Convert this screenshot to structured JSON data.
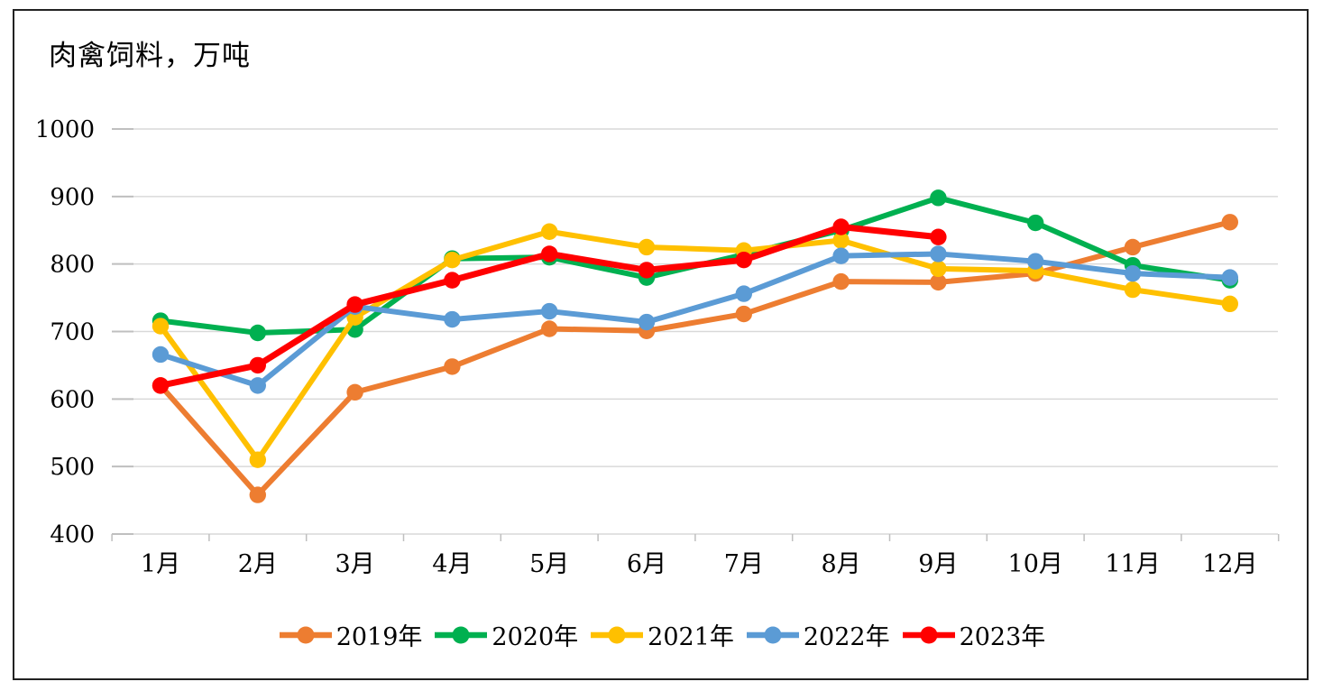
{
  "title": "肉禽饲料，万吨",
  "chart_data": {
    "type": "line",
    "title": "肉禽饲料，万吨",
    "unit": "万吨",
    "categories": [
      "1月",
      "2月",
      "3月",
      "4月",
      "5月",
      "6月",
      "7月",
      "8月",
      "9月",
      "10月",
      "11月",
      "12月"
    ],
    "series": [
      {
        "name": "2019年",
        "color": "#ED7D31",
        "values": [
          620,
          458,
          610,
          648,
          704,
          701,
          726,
          774,
          773,
          786,
          825,
          862
        ]
      },
      {
        "name": "2020年",
        "color": "#00B050",
        "values": [
          716,
          698,
          703,
          808,
          810,
          780,
          814,
          850,
          898,
          861,
          798,
          776
        ]
      },
      {
        "name": "2021年",
        "color": "#FFC000",
        "values": [
          708,
          510,
          721,
          806,
          848,
          825,
          820,
          835,
          793,
          790,
          762,
          741
        ]
      },
      {
        "name": "2022年",
        "color": "#5B9BD5",
        "values": [
          666,
          620,
          737,
          718,
          730,
          714,
          756,
          812,
          815,
          804,
          786,
          780
        ]
      },
      {
        "name": "2023年",
        "color": "#FF0000",
        "values": [
          620,
          650,
          740,
          776,
          815,
          791,
          806,
          855,
          840,
          null,
          null,
          null
        ]
      }
    ],
    "ylim": [
      400,
      1000
    ],
    "yticks": [
      1000,
      900,
      800,
      700,
      600,
      500,
      400
    ],
    "grid": "horizontal",
    "gridline_color": "#D9D9D9",
    "tick_color": "#BFBFBF",
    "legend_position": "bottom"
  }
}
